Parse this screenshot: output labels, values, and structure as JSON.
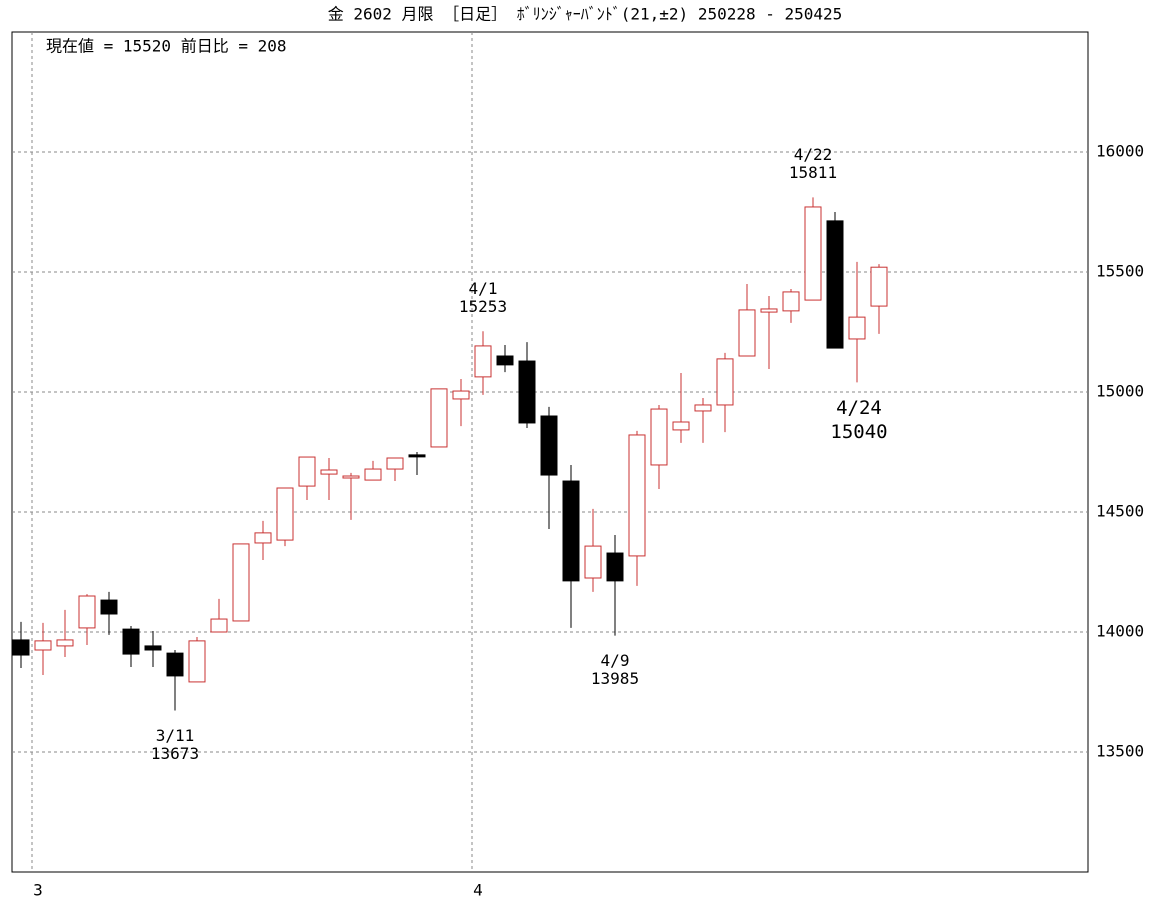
{
  "chart_data": {
    "type": "candlestick",
    "title": "金 2602 月限 ［日足］ ﾎﾞﾘﾝｼﾞｬｰﾊﾞﾝﾄﾞ(21,±2)  250228 - 250425",
    "subtitle": "現在値 = 15520  前日比 = 208",
    "categories": [
      null,
      "3",
      null,
      null,
      null,
      null,
      null,
      null,
      null,
      null,
      null,
      null,
      null,
      null,
      null,
      null,
      null,
      null,
      null,
      null,
      null,
      "4",
      null,
      null,
      null,
      null,
      null,
      null,
      null,
      null,
      null,
      null,
      null,
      null,
      null,
      null,
      null,
      null,
      null,
      null
    ],
    "open": [
      13967,
      13925,
      13942,
      14017,
      14133,
      14012,
      13942,
      13912,
      13792,
      14000,
      14046,
      14371,
      14383,
      14608,
      14658,
      14642,
      14633,
      14679,
      14738,
      14771,
      14971,
      15063,
      15150,
      15129,
      14900,
      14629,
      14225,
      14329,
      14317,
      14696,
      14842,
      14921,
      14946,
      15150,
      15333,
      15338,
      15383,
      15713,
      15221,
      15358
    ],
    "high": [
      14042,
      14038,
      14092,
      14158,
      14167,
      14025,
      14004,
      13925,
      13979,
      14138,
      14367,
      14463,
      14600,
      14729,
      14725,
      14663,
      14713,
      14725,
      14750,
      15013,
      15054,
      15253,
      15196,
      15208,
      14938,
      14696,
      14513,
      14404,
      14838,
      14946,
      15079,
      14975,
      15163,
      15450,
      15400,
      15429,
      15811,
      15750,
      15542,
      15533
    ],
    "low": [
      13850,
      13821,
      13896,
      13946,
      13988,
      13854,
      13854,
      13673,
      13792,
      14000,
      14046,
      14300,
      14358,
      14550,
      14550,
      14467,
      14633,
      14629,
      14654,
      14771,
      14858,
      14988,
      15083,
      14850,
      14429,
      14017,
      14167,
      13985,
      14192,
      14596,
      14788,
      14788,
      14833,
      15150,
      15096,
      15288,
      15383,
      15183,
      15040,
      15242
    ],
    "close": [
      13904,
      13963,
      13967,
      14150,
      14075,
      13908,
      13925,
      13817,
      13963,
      14054,
      14367,
      14413,
      14600,
      14729,
      14675,
      14650,
      14679,
      14725,
      14738,
      15013,
      15004,
      15192,
      15113,
      14871,
      14654,
      14213,
      14358,
      14213,
      14821,
      14929,
      14875,
      14946,
      15138,
      15342,
      15346,
      15417,
      15771,
      15183,
      15312,
      15520
    ],
    "up_color": "#c83232",
    "down_color": "#000000",
    "ylim": [
      13000,
      16500
    ],
    "yticks": [
      13500,
      14000,
      14500,
      15000,
      15500,
      16000
    ],
    "grid": true,
    "annotations": [
      {
        "label": "3/11",
        "value": 13673
      },
      {
        "label": "4/1",
        "value": 15253
      },
      {
        "label": "4/9",
        "value": 13985
      },
      {
        "label": "4/22",
        "value": 15811
      },
      {
        "label": "4/24",
        "value": 15040
      }
    ]
  }
}
